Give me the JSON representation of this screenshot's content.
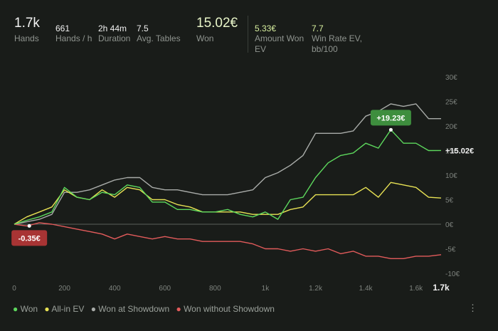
{
  "stats": {
    "hands": {
      "value": "1.7k",
      "label": "Hands"
    },
    "hands_per_hour": {
      "value": "661",
      "label": "Hands / h"
    },
    "duration": {
      "value": "2h 44m",
      "label": "Duration"
    },
    "avg_tables": {
      "value": "7.5",
      "label": "Avg. Tables"
    },
    "won": {
      "value": "15.02€",
      "label": "Won"
    },
    "amount_won_ev": {
      "value": "5.33€",
      "label_line1": "Amount Won",
      "label_line2": "EV"
    },
    "win_rate_ev": {
      "value": "7.7",
      "label_line1": "Win Rate EV,",
      "label_line2": "bb/100"
    }
  },
  "chart_data": {
    "type": "line",
    "x_ticks": [
      "0",
      "200",
      "400",
      "600",
      "800",
      "1k",
      "1.2k",
      "1.4k",
      "1.6k",
      "1.7k"
    ],
    "x_tick_values": [
      0,
      200,
      400,
      600,
      800,
      1000,
      1200,
      1400,
      1600,
      1700
    ],
    "y_ticks": [
      "30€",
      "25€",
      "20€",
      "15€",
      "10€",
      "5€",
      "0€",
      "-5€",
      "-10€"
    ],
    "y_tick_values": [
      30,
      25,
      20,
      15,
      10,
      5,
      0,
      -5,
      -10
    ],
    "xlim": [
      0,
      1700
    ],
    "ylim": [
      -10,
      30
    ],
    "series": [
      {
        "name": "Won",
        "color": "#5dd85d",
        "x": [
          0,
          50,
          100,
          150,
          200,
          250,
          300,
          350,
          400,
          450,
          500,
          550,
          600,
          650,
          700,
          750,
          800,
          850,
          900,
          950,
          1000,
          1050,
          1100,
          1150,
          1200,
          1250,
          1300,
          1350,
          1400,
          1450,
          1500,
          1550,
          1600,
          1650,
          1700
        ],
        "y": [
          0,
          0.8,
          1.5,
          2.5,
          7.5,
          5.5,
          5.0,
          6.5,
          6.0,
          8.0,
          7.5,
          4.5,
          4.5,
          3.0,
          3.0,
          2.5,
          2.5,
          3.0,
          2.0,
          1.5,
          2.5,
          1.0,
          5.0,
          5.5,
          9.5,
          12.5,
          14.0,
          14.5,
          16.5,
          15.5,
          19.23,
          16.5,
          16.5,
          15.0,
          15.02
        ]
      },
      {
        "name": "All-in EV",
        "color": "#e8e254",
        "x": [
          0,
          50,
          100,
          150,
          200,
          250,
          300,
          350,
          400,
          450,
          500,
          550,
          600,
          650,
          700,
          750,
          800,
          850,
          900,
          950,
          1000,
          1050,
          1100,
          1150,
          1200,
          1250,
          1300,
          1350,
          1400,
          1450,
          1500,
          1550,
          1600,
          1650,
          1700
        ],
        "y": [
          0,
          1.5,
          2.5,
          3.5,
          7.0,
          5.5,
          5.0,
          7.0,
          5.5,
          7.5,
          7.0,
          5.0,
          5.0,
          4.0,
          3.5,
          2.5,
          2.5,
          2.5,
          2.5,
          2.0,
          2.0,
          2.0,
          3.0,
          3.5,
          6.0,
          6.0,
          6.0,
          6.0,
          7.5,
          5.5,
          8.5,
          8.0,
          7.5,
          5.5,
          5.33
        ]
      },
      {
        "name": "Won at Showdown",
        "color": "#a9aca9",
        "x": [
          0,
          50,
          100,
          150,
          200,
          250,
          300,
          350,
          400,
          450,
          500,
          550,
          600,
          650,
          700,
          750,
          800,
          850,
          900,
          950,
          1000,
          1050,
          1100,
          1150,
          1200,
          1250,
          1300,
          1350,
          1400,
          1450,
          1500,
          1550,
          1600,
          1650,
          1700
        ],
        "y": [
          0,
          0.5,
          1.0,
          2.0,
          6.5,
          6.5,
          7.0,
          8.0,
          9.0,
          9.5,
          9.5,
          7.5,
          7.0,
          7.0,
          6.5,
          6.0,
          6.0,
          6.0,
          6.5,
          7.0,
          9.5,
          10.5,
          12.0,
          14.0,
          18.5,
          18.5,
          18.5,
          19.0,
          22.0,
          23.0,
          24.5,
          24.0,
          24.5,
          21.5,
          21.5
        ]
      },
      {
        "name": "Won without Showdown",
        "color": "#e25b5b",
        "x": [
          0,
          50,
          100,
          150,
          200,
          250,
          300,
          350,
          400,
          450,
          500,
          550,
          600,
          650,
          700,
          750,
          800,
          850,
          900,
          950,
          1000,
          1050,
          1100,
          1150,
          1200,
          1250,
          1300,
          1350,
          1400,
          1450,
          1500,
          1550,
          1600,
          1650,
          1700
        ],
        "y": [
          0,
          -0.35,
          0.3,
          0.0,
          -0.5,
          -1.0,
          -1.5,
          -2.0,
          -3.0,
          -2.0,
          -2.5,
          -3.0,
          -2.5,
          -3.0,
          -3.0,
          -3.5,
          -3.5,
          -3.5,
          -3.5,
          -4.0,
          -5.0,
          -5.0,
          -5.5,
          -5.0,
          -5.5,
          -5.0,
          -6.0,
          -5.5,
          -6.5,
          -6.5,
          -7.0,
          -7.0,
          -6.5,
          -6.5,
          -6.2
        ]
      }
    ],
    "annotations": [
      {
        "label": "+19.23€",
        "x": 1500,
        "y": 19.23,
        "color": "#3e8e3e"
      },
      {
        "label": "-0.35€",
        "x": 60,
        "y": -0.35,
        "color": "#a83434"
      },
      {
        "label": "+15.02€",
        "x": 1700,
        "y": 15.02,
        "color": null
      }
    ],
    "legend_position": "bottom-left",
    "grid": false
  },
  "legend": [
    {
      "label": "Won",
      "color": "#5dd85d"
    },
    {
      "label": "All-in EV",
      "color": "#e8e254"
    },
    {
      "label": "Won at Showdown",
      "color": "#a9aca9"
    },
    {
      "label": "Won without Showdown",
      "color": "#e25b5b"
    }
  ],
  "menu_icon": "more-vertical-icon"
}
